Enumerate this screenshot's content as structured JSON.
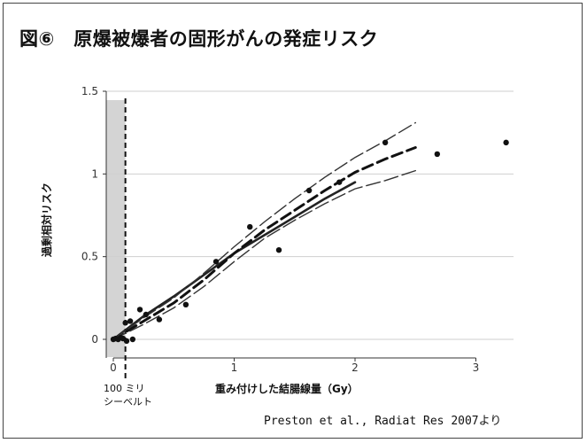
{
  "title": "図⑥　原爆被爆者の固形がんの発症リスク",
  "source": "Preston et al., Radiat Res 2007より",
  "threshold_note": "100 ミリ\nシーベルト",
  "chart_data": {
    "type": "scatter",
    "title": "図⑥　原爆被爆者の固形がんの発症リスク",
    "xlabel": "重み付けした結腸線量（Gy）",
    "ylabel": "過剰相対リスク",
    "xlim": [
      -0.05,
      3.3
    ],
    "ylim": [
      -0.05,
      1.45
    ],
    "x_ticks": [
      0,
      1,
      2,
      3
    ],
    "x_tick_labels": [
      "0",
      "1",
      "2",
      "3"
    ],
    "y_ticks": [
      0,
      0.5,
      1,
      1.5
    ],
    "y_tick_labels": [
      "0",
      "0.5",
      "1",
      "1.5"
    ],
    "grid": true,
    "shaded_region": [
      -0.05,
      0.1
    ],
    "threshold_line_x": 0.1,
    "threshold_label": "100 ミリ\nシーベルト",
    "points": [
      {
        "x": 0.0,
        "y": 0.0
      },
      {
        "x": 0.02,
        "y": 0.005
      },
      {
        "x": 0.04,
        "y": 0.0
      },
      {
        "x": 0.06,
        "y": 0.01
      },
      {
        "x": 0.08,
        "y": 0.005
      },
      {
        "x": 0.1,
        "y": 0.1
      },
      {
        "x": 0.11,
        "y": -0.01
      },
      {
        "x": 0.14,
        "y": 0.11
      },
      {
        "x": 0.16,
        "y": 0.0
      },
      {
        "x": 0.22,
        "y": 0.18
      },
      {
        "x": 0.27,
        "y": 0.15
      },
      {
        "x": 0.38,
        "y": 0.12
      },
      {
        "x": 0.6,
        "y": 0.21
      },
      {
        "x": 0.85,
        "y": 0.47
      },
      {
        "x": 1.13,
        "y": 0.68
      },
      {
        "x": 1.37,
        "y": 0.54
      },
      {
        "x": 1.62,
        "y": 0.9
      },
      {
        "x": 1.87,
        "y": 0.95
      },
      {
        "x": 2.25,
        "y": 1.19
      },
      {
        "x": 2.68,
        "y": 1.12
      },
      {
        "x": 3.25,
        "y": 1.19
      }
    ],
    "series": [
      {
        "style": "solid",
        "x": [
          0,
          0.25,
          0.5,
          0.75,
          1.0,
          1.25,
          1.5,
          1.75,
          2.0
        ],
        "y": [
          0,
          0.14,
          0.26,
          0.39,
          0.52,
          0.63,
          0.74,
          0.85,
          0.95
        ]
      },
      {
        "style": "thick-dashed",
        "x": [
          0,
          0.25,
          0.5,
          0.75,
          1.0,
          1.25,
          1.5,
          1.75,
          2.0,
          2.25,
          2.5
        ],
        "y": [
          0,
          0.11,
          0.22,
          0.36,
          0.52,
          0.66,
          0.78,
          0.9,
          1.01,
          1.09,
          1.16
        ]
      },
      {
        "style": "thin-dashed-upper",
        "x": [
          0,
          0.25,
          0.5,
          0.75,
          1.0,
          1.25,
          1.5,
          1.75,
          2.0,
          2.25,
          2.5
        ],
        "y": [
          0,
          0.13,
          0.25,
          0.4,
          0.56,
          0.71,
          0.85,
          0.98,
          1.1,
          1.2,
          1.31
        ]
      },
      {
        "style": "thin-dashed-lower",
        "x": [
          0,
          0.25,
          0.5,
          0.75,
          1.0,
          1.25,
          1.5,
          1.75,
          2.0,
          2.25,
          2.5
        ],
        "y": [
          0,
          0.09,
          0.19,
          0.32,
          0.47,
          0.61,
          0.72,
          0.82,
          0.91,
          0.96,
          1.02
        ]
      }
    ]
  }
}
